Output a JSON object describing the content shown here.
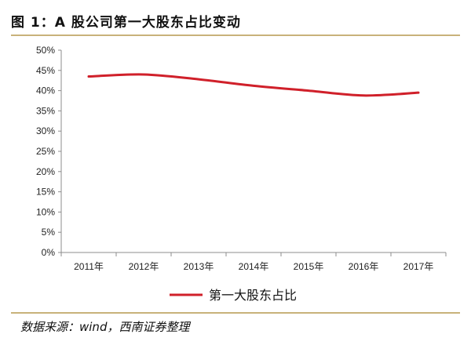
{
  "figure": {
    "title": "图 1：A 股公司第一大股东占比变动",
    "source": "数据来源：wind，西南证券整理"
  },
  "chart_data": {
    "type": "line",
    "categories": [
      "2011年",
      "2012年",
      "2013年",
      "2014年",
      "2015年",
      "2016年",
      "2017年"
    ],
    "series": [
      {
        "name": "第一大股东占比",
        "values": [
          43.5,
          44.0,
          42.8,
          41.2,
          40.0,
          38.8,
          39.5
        ],
        "color": "#d0202a"
      }
    ],
    "ylim": [
      0,
      50
    ],
    "y_ticks": [
      "0%",
      "5%",
      "10%",
      "15%",
      "20%",
      "25%",
      "30%",
      "35%",
      "40%",
      "45%",
      "50%"
    ],
    "y_unit": "%",
    "legend_position": "bottom",
    "grid": false
  }
}
